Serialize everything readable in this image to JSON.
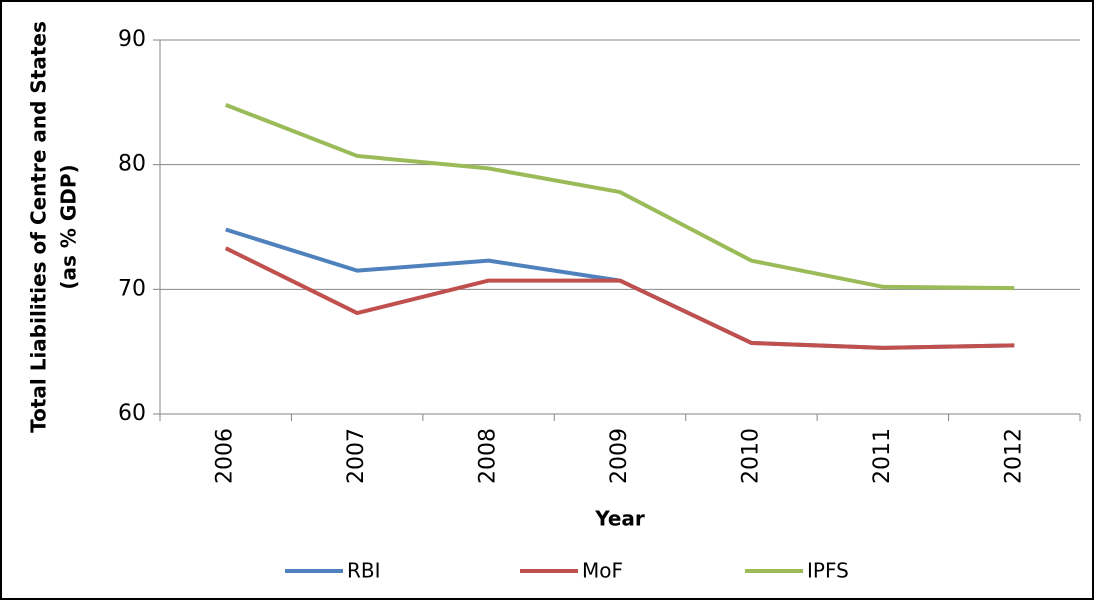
{
  "chart_data": {
    "type": "line",
    "y_label": [
      "Total Liabilities of Centre and States",
      "(as % GDP)"
    ],
    "x_label": "Year",
    "categories": [
      "2006",
      "2007",
      "2008",
      "2009",
      "2010",
      "2011",
      "2012"
    ],
    "series": [
      {
        "name": "RBI",
        "color": "#4f81bd",
        "values": [
          74.8,
          71.5,
          72.3,
          70.7,
          65.7,
          65.3,
          65.5
        ]
      },
      {
        "name": "MoF",
        "color": "#c0504d",
        "values": [
          73.3,
          68.1,
          70.7,
          70.7,
          65.7,
          65.3,
          65.5
        ]
      },
      {
        "name": "IPFS",
        "color": "#9bbb59",
        "values": [
          84.8,
          80.7,
          79.7,
          77.8,
          72.3,
          70.2,
          70.1
        ]
      }
    ],
    "ylim": [
      60,
      90
    ],
    "yticks": [
      60,
      70,
      80,
      90
    ],
    "grid": true,
    "legend": "bottom"
  }
}
